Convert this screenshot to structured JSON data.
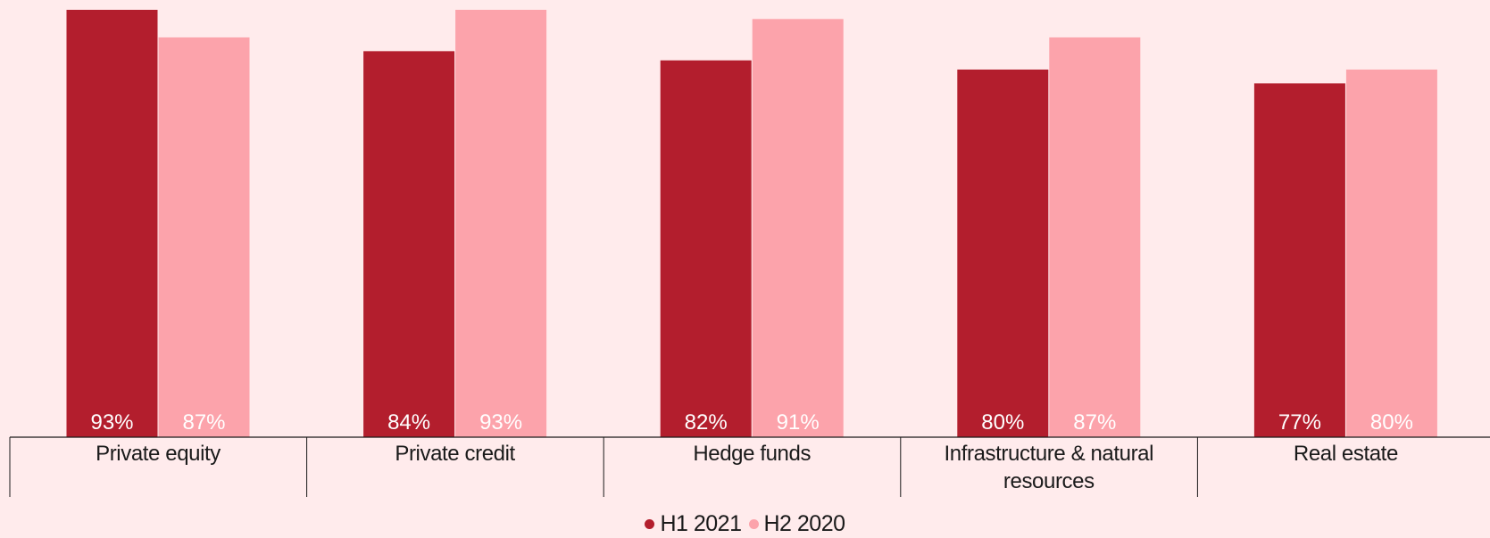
{
  "chart_data": {
    "type": "bar",
    "categories": [
      "Private equity",
      "Private credit",
      "Hedge funds",
      "Infrastructure & natural resources",
      "Real estate"
    ],
    "series": [
      {
        "name": "H1 2021",
        "values": [
          93,
          84,
          82,
          80,
          77
        ],
        "color": "#b31e2d"
      },
      {
        "name": "H2 2020",
        "values": [
          87,
          93,
          91,
          87,
          80
        ],
        "color": "#fca3ab"
      }
    ],
    "value_suffix": "%",
    "ylim": [
      0,
      93
    ],
    "legend_position": "bottom-center",
    "grid": false
  }
}
